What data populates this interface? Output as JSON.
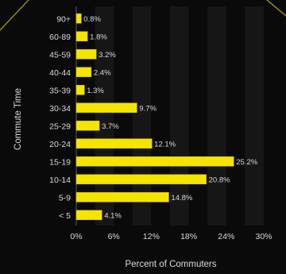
{
  "chart_data": {
    "type": "bar",
    "orientation": "horizontal",
    "categories": [
      "90+",
      "60-89",
      "45-59",
      "40-44",
      "35-39",
      "30-34",
      "25-29",
      "20-24",
      "15-19",
      "10-14",
      "5-9",
      "< 5"
    ],
    "values": [
      0.8,
      1.8,
      3.2,
      2.4,
      1.3,
      9.7,
      3.7,
      12.1,
      25.2,
      20.8,
      14.8,
      4.1
    ],
    "data_labels": [
      "0.8%",
      "1.8%",
      "3.2%",
      "2.4%",
      "1.3%",
      "9.7%",
      "3.7%",
      "12.1%",
      "25.2%",
      "20.8%",
      "14.8%",
      "4.1%"
    ],
    "xlabel": "Percent of Commuters",
    "ylabel": "Commute Time",
    "xlim": [
      0,
      30
    ],
    "xticks": [
      0,
      6,
      12,
      18,
      24,
      30
    ],
    "xtick_labels": [
      "0%",
      "6%",
      "12%",
      "18%",
      "24%",
      "30%"
    ],
    "grid": "vertical alternating bands",
    "legend": "none",
    "colors": {
      "background": "#0a0a0a",
      "band": "#161616",
      "bar": "#f5e400",
      "bar_edge": "#c9bb00",
      "text": "#d9d9d9",
      "accent_line": "#b8a800"
    }
  }
}
